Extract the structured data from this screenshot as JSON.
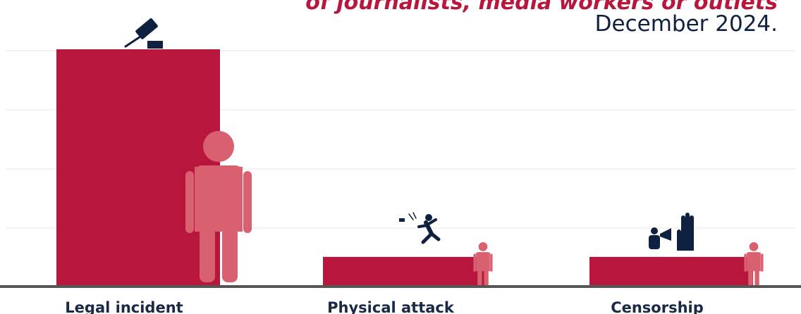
{
  "title_fragment": "of journalists, media workers or outlets",
  "subtitle": "December 2024.",
  "colors": {
    "bar": "#b8163c",
    "person": "#d9606f",
    "icon": "#0f2140",
    "axis": "#555555",
    "grid": "#f3f3f3"
  },
  "icons": [
    "gavel-icon",
    "person-falling-icon",
    "megaphone-hand-icon"
  ],
  "chart_data": {
    "type": "bar",
    "title": "",
    "categories": [
      "Legal incident",
      "Physical attack",
      "Censorship"
    ],
    "values": [
      40,
      5,
      5
    ],
    "ylim": [
      0,
      40
    ],
    "grid": true,
    "xlabel": "",
    "ylabel": "",
    "annotations": [
      "December 2024."
    ]
  }
}
